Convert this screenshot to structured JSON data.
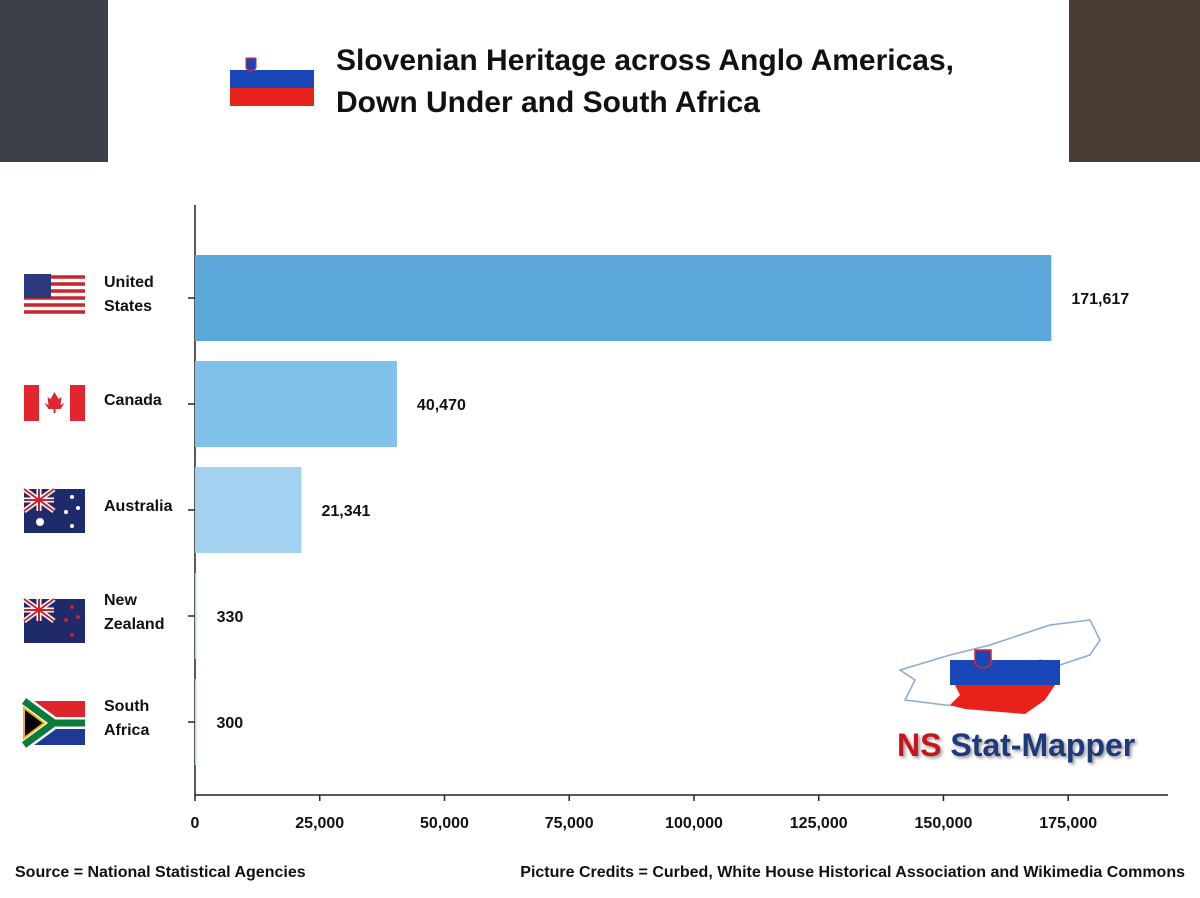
{
  "chart_data": {
    "type": "bar",
    "orientation": "horizontal",
    "title": "Slovenian Heritage across Anglo Americas, Down Under and South Africa",
    "categories": [
      "United States",
      "Canada",
      "Australia",
      "New Zealand",
      "South Africa"
    ],
    "values": [
      171617,
      40470,
      21341,
      330,
      300
    ],
    "value_labels": [
      "171,617",
      "40,470",
      "21,341",
      "330",
      "300"
    ],
    "colors": [
      "#5ca8da",
      "#80c1e9",
      "#a2d2f0",
      "#b9ddf4",
      "#b9ddf4"
    ],
    "xlim": [
      0,
      195000
    ],
    "xticks": [
      0,
      {
        "value": 25000,
        "label": "25,000"
      },
      {
        "value": 50000,
        "label": "50,000"
      },
      {
        "value": 75000,
        "label": "75,000"
      },
      {
        "value": 100000,
        "label": "100,000"
      },
      {
        "value": 125000,
        "label": "125,000"
      },
      {
        "value": 150000,
        "label": "150,000"
      },
      {
        "value": 175000,
        "label": "175,000"
      }
    ],
    "grid": false,
    "source": "Source = National Statistical Agencies",
    "credits": "Picture Credits = Curbed, White House Historical Association and Wikimedia Commons",
    "logo": {
      "prefix": "NS",
      "name": "Stat-Mapper"
    }
  }
}
